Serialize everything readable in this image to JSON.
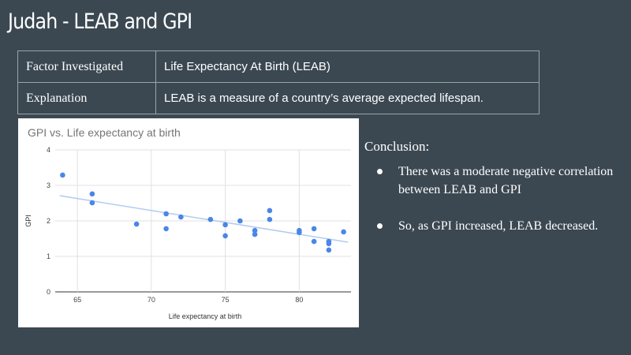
{
  "header": {
    "title": "Judah - LEAB and GPI"
  },
  "table": {
    "rows": [
      [
        "Factor Investigated",
        "Life Expectancy At Birth (LEAB)"
      ],
      [
        "Explanation",
        "LEAB is a measure of a country’s average expected lifespan."
      ]
    ]
  },
  "chart_data": {
    "type": "scatter",
    "title": "GPI vs. Life expectancy at birth",
    "xlabel": "Life expectancy at birth",
    "ylabel": "GPI",
    "x": [
      64,
      66,
      66,
      69,
      71,
      71,
      72,
      74,
      75,
      75,
      76,
      77,
      77,
      78,
      78,
      80,
      80,
      81,
      81,
      82,
      82,
      82,
      83
    ],
    "values": [
      3.29,
      2.76,
      2.51,
      1.91,
      2.2,
      1.78,
      2.11,
      2.04,
      1.89,
      1.58,
      2.0,
      1.73,
      1.62,
      2.29,
      2.04,
      1.73,
      1.67,
      1.78,
      1.42,
      1.42,
      1.36,
      1.18,
      1.69
    ],
    "color": "#4a86e8",
    "trendline": {
      "x": [
        63.8,
        83.3
      ],
      "values": [
        2.71,
        1.4
      ],
      "color": "#b3cbf0"
    },
    "xlim": [
      63.5,
      83.5
    ],
    "ylim": [
      0,
      4
    ],
    "xticks": [
      65,
      70,
      75,
      80
    ],
    "yticks": [
      0,
      1,
      2,
      3,
      4
    ],
    "grid": true
  },
  "conclusion": {
    "heading": "Conclusion:",
    "bullets": [
      "There was a moderate negative correlation between LEAB and GPI",
      "So, as GPI increased, LEAB decreased."
    ]
  }
}
